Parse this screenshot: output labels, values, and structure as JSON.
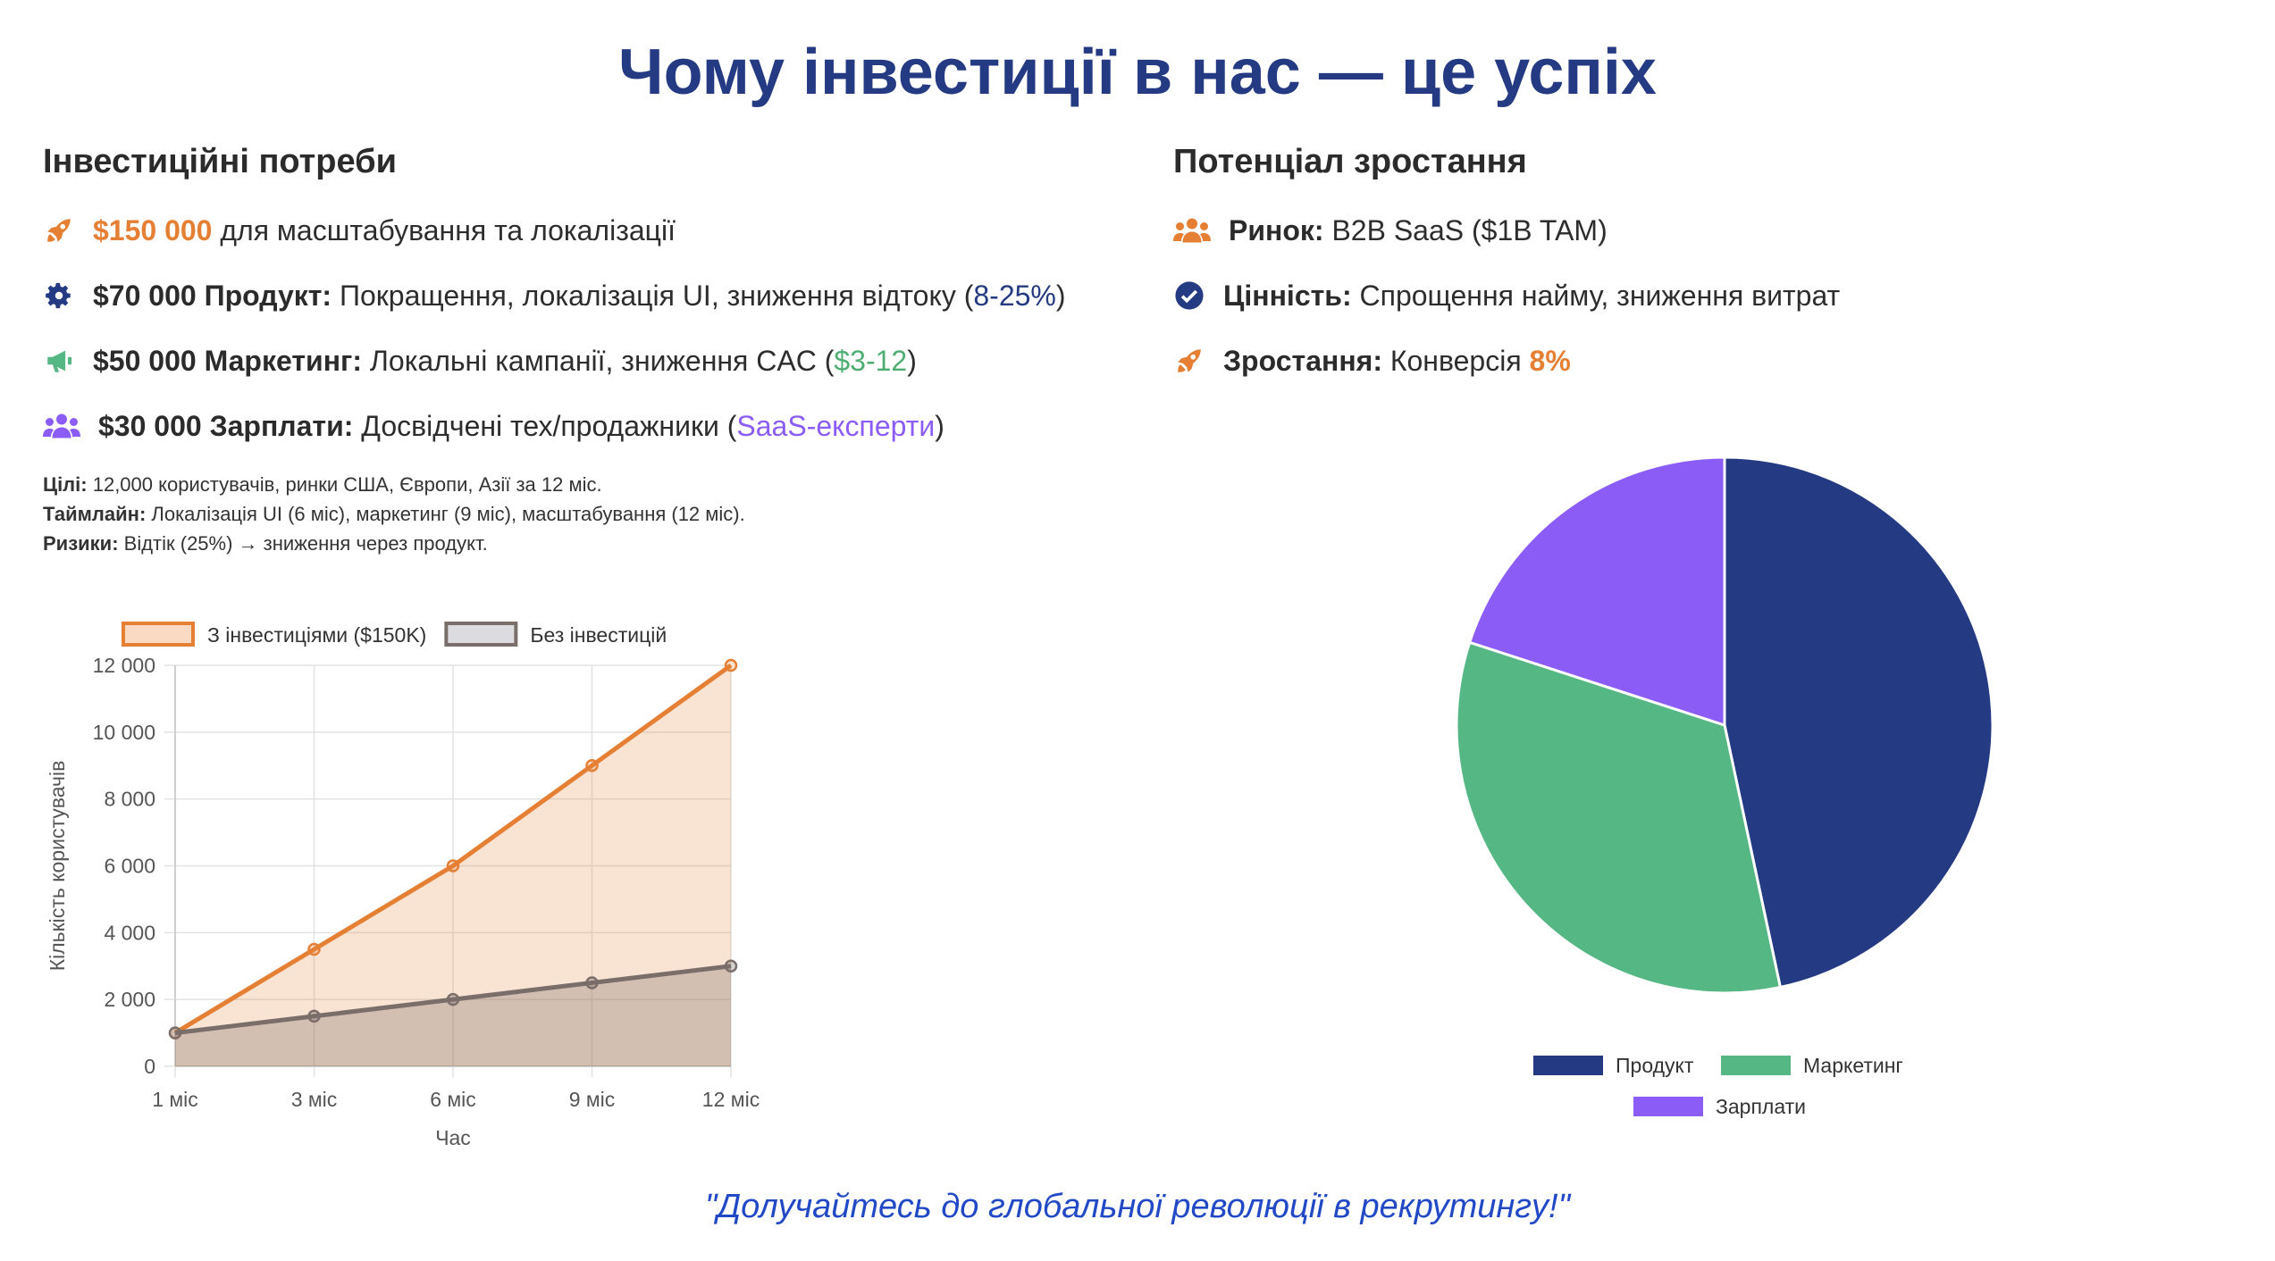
{
  "title": "Чому інвестиції в нас — це успіх",
  "left": {
    "heading": "Інвестиційні потреби",
    "items": [
      {
        "icon": "rocket-icon",
        "amount": "$150 000",
        "text": " для масштабування та локалізації"
      },
      {
        "icon": "gear-icon",
        "label": "$70 000 Продукт:",
        "text": " Покращення, локалізація UI, зниження відтоку (",
        "hl": "8-25%",
        "end": ")"
      },
      {
        "icon": "megaphone-icon",
        "label": "$50 000 Маркетинг:",
        "text": " Локальні кампанії, зниження CAC (",
        "hl": "$3-12",
        "end": ")"
      },
      {
        "icon": "users-icon",
        "label": "$30 000 Зарплати:",
        "text": " Досвідчені тех/продажники (",
        "hl": "SaaS-експерти",
        "end": ")"
      }
    ],
    "notes": [
      {
        "label": "Цілі:",
        "text": " 12,000 користувачів, ринки США, Європи, Азії за 12 міс."
      },
      {
        "label": "Таймлайн:",
        "text": " Локалізація UI (6 міс), маркетинг (9 міс), масштабування (12 міс)."
      },
      {
        "label": "Ризики:",
        "text": " Відтік (25%) → зниження через продукт."
      }
    ]
  },
  "right": {
    "heading": "Потенціал зростання",
    "items": [
      {
        "icon": "users-icon",
        "label": "Ринок:",
        "text": " B2B SaaS ($1B TAM)"
      },
      {
        "icon": "check-circle-icon",
        "label": "Цінність:",
        "text": " Спрощення найму, зниження витрат"
      },
      {
        "icon": "rocket-icon",
        "label": "Зростання:",
        "text": " Конверсія ",
        "hl": "8%"
      }
    ]
  },
  "quote": "\"Долучайтесь до глобальної революції в рекрутингу!\"",
  "colors": {
    "orange": "#e57f34",
    "navy": "#243a82",
    "green": "#55b884",
    "purple": "#8b5cf6",
    "gray": "#7a6e6a"
  },
  "chart_data": [
    {
      "type": "area",
      "categories": [
        "1 міс",
        "3 міс",
        "6 міс",
        "9 міс",
        "12 міс"
      ],
      "series": [
        {
          "name": "З інвестиціями ($150K)",
          "values": [
            1000,
            3500,
            6000,
            9000,
            12000
          ],
          "color": "#e57f34"
        },
        {
          "name": "Без інвестицій",
          "values": [
            1000,
            1500,
            2000,
            2500,
            3000
          ],
          "color": "#7a6e6a"
        }
      ],
      "xlabel": "Час",
      "ylabel": "Кількість користувачів",
      "ylim": [
        0,
        12000
      ],
      "yticks": [
        "0",
        "2 000",
        "4 000",
        "6 000",
        "8 000",
        "10 000",
        "12 000"
      ],
      "legend": "top",
      "grid": true
    },
    {
      "type": "pie",
      "labels": [
        "Продукт",
        "Маркетинг",
        "Зарплати"
      ],
      "values": [
        70000,
        50000,
        30000
      ],
      "colors": [
        "#243a82",
        "#55b884",
        "#8b5cf6"
      ],
      "legend": "bottom"
    }
  ]
}
